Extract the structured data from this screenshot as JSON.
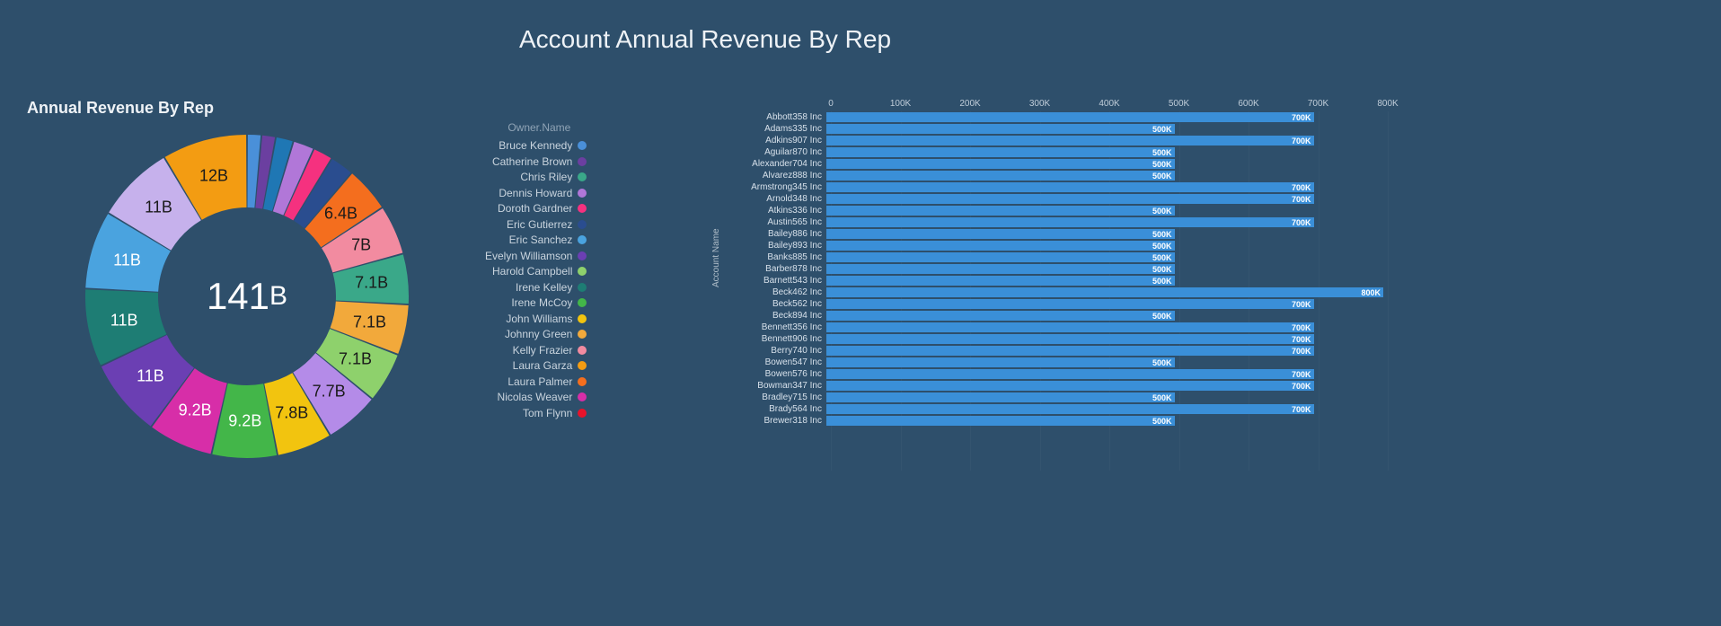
{
  "title": "Account Annual Revenue By Rep",
  "subtitle": "Annual Revenue By Rep",
  "colors": {
    "background": "#2e4f6b",
    "text": "#ffffff",
    "muted_text": "#c0cdd9",
    "bar_fill": "#3a8fd8"
  },
  "donut": {
    "center_value": "141",
    "center_unit": "B",
    "inner_radius_pct": 55,
    "slices": [
      {
        "label_visible": "",
        "value": 2.0,
        "color": "#4a90d9",
        "text_color": "#ffffff"
      },
      {
        "label_visible": "",
        "value": 2.0,
        "color": "#6b3fa0",
        "text_color": "#ffffff"
      },
      {
        "label_visible": "",
        "value": 2.5,
        "color": "#1f77b4",
        "text_color": "#ffffff"
      },
      {
        "label_visible": "",
        "value": 3.0,
        "color": "#b177d8",
        "text_color": "#ffffff"
      },
      {
        "label_visible": "",
        "value": 2.8,
        "color": "#f5317f",
        "text_color": "#ffffff"
      },
      {
        "label_visible": "",
        "value": 3.4,
        "color": "#2a4d8f",
        "text_color": "#ffffff"
      },
      {
        "label_visible": "6.4B",
        "value": 6.4,
        "color": "#f46e1e",
        "text_color": "#1a1a1a"
      },
      {
        "label_visible": "7B",
        "value": 7.0,
        "color": "#f28ba0",
        "text_color": "#1a1a1a"
      },
      {
        "label_visible": "7.1B",
        "value": 7.1,
        "color": "#3aa889",
        "text_color": "#1a1a1a"
      },
      {
        "label_visible": "7.1B",
        "value": 7.1,
        "color": "#f2a93b",
        "text_color": "#1a1a1a"
      },
      {
        "label_visible": "7.1B",
        "value": 7.1,
        "color": "#8ed16c",
        "text_color": "#1a1a1a"
      },
      {
        "label_visible": "7.7B",
        "value": 7.7,
        "color": "#b48be8",
        "text_color": "#1a1a1a"
      },
      {
        "label_visible": "7.8B",
        "value": 7.8,
        "color": "#f2c40f",
        "text_color": "#1a1a1a"
      },
      {
        "label_visible": "9.2B",
        "value": 9.2,
        "color": "#43b649",
        "text_color": "#ffffff"
      },
      {
        "label_visible": "9.2B",
        "value": 9.2,
        "color": "#d72ea8",
        "text_color": "#ffffff"
      },
      {
        "label_visible": "11B",
        "value": 11.0,
        "color": "#6b3fb3",
        "text_color": "#ffffff"
      },
      {
        "label_visible": "11B",
        "value": 11.0,
        "color": "#1e7d74",
        "text_color": "#ffffff"
      },
      {
        "label_visible": "11B",
        "value": 11.0,
        "color": "#4aa3df",
        "text_color": "#ffffff"
      },
      {
        "label_visible": "11B",
        "value": 11.0,
        "color": "#c6b1ec",
        "text_color": "#1a1a1a"
      },
      {
        "label_visible": "12B",
        "value": 12.0,
        "color": "#f39c12",
        "text_color": "#1a1a1a"
      }
    ]
  },
  "legend": {
    "title": "Owner.Name",
    "items": [
      {
        "name": "Bruce Kennedy",
        "color": "#4a90d9"
      },
      {
        "name": "Catherine Brown",
        "color": "#6b3fa0"
      },
      {
        "name": "Chris Riley",
        "color": "#3aa889"
      },
      {
        "name": "Dennis Howard",
        "color": "#b177d8"
      },
      {
        "name": "Doroth Gardner",
        "color": "#f5317f"
      },
      {
        "name": "Eric Gutierrez",
        "color": "#2a4d8f"
      },
      {
        "name": "Eric Sanchez",
        "color": "#4aa3df"
      },
      {
        "name": "Evelyn Williamson",
        "color": "#6b3fb3"
      },
      {
        "name": "Harold Campbell",
        "color": "#8ed16c"
      },
      {
        "name": "Irene Kelley",
        "color": "#1e7d74"
      },
      {
        "name": "Irene McCoy",
        "color": "#43b649"
      },
      {
        "name": "John Williams",
        "color": "#f2c40f"
      },
      {
        "name": "Johnny Green",
        "color": "#f2a93b"
      },
      {
        "name": "Kelly Frazier",
        "color": "#f28ba0"
      },
      {
        "name": "Laura Garza",
        "color": "#f39c12"
      },
      {
        "name": "Laura Palmer",
        "color": "#f46e1e"
      },
      {
        "name": "Nicolas Weaver",
        "color": "#d72ea8"
      },
      {
        "name": "Tom Flynn",
        "color": "#e8132b"
      }
    ]
  },
  "barchart": {
    "y_axis_title": "Account Name",
    "x_axis": {
      "min": 0,
      "max": 800,
      "step": 100,
      "unit": "K"
    },
    "bar_color": "#3a8fd8",
    "bars": [
      {
        "label": "Abbott358 Inc",
        "value": 700,
        "display": "700K"
      },
      {
        "label": "Adams335 Inc",
        "value": 500,
        "display": "500K"
      },
      {
        "label": "Adkins907 Inc",
        "value": 700,
        "display": "700K"
      },
      {
        "label": "Aguilar870 Inc",
        "value": 500,
        "display": "500K"
      },
      {
        "label": "Alexander704 Inc",
        "value": 500,
        "display": "500K"
      },
      {
        "label": "Alvarez888 Inc",
        "value": 500,
        "display": "500K"
      },
      {
        "label": "Armstrong345 Inc",
        "value": 700,
        "display": "700K"
      },
      {
        "label": "Arnold348 Inc",
        "value": 700,
        "display": "700K"
      },
      {
        "label": "Atkins336 Inc",
        "value": 500,
        "display": "500K"
      },
      {
        "label": "Austin565 Inc",
        "value": 700,
        "display": "700K"
      },
      {
        "label": "Bailey886 Inc",
        "value": 500,
        "display": "500K"
      },
      {
        "label": "Bailey893 Inc",
        "value": 500,
        "display": "500K"
      },
      {
        "label": "Banks885 Inc",
        "value": 500,
        "display": "500K"
      },
      {
        "label": "Barber878 Inc",
        "value": 500,
        "display": "500K"
      },
      {
        "label": "Barnett543 Inc",
        "value": 500,
        "display": "500K"
      },
      {
        "label": "Beck462 Inc",
        "value": 800,
        "display": "800K"
      },
      {
        "label": "Beck562 Inc",
        "value": 700,
        "display": "700K"
      },
      {
        "label": "Beck894 Inc",
        "value": 500,
        "display": "500K"
      },
      {
        "label": "Bennett356 Inc",
        "value": 700,
        "display": "700K"
      },
      {
        "label": "Bennett906 Inc",
        "value": 700,
        "display": "700K"
      },
      {
        "label": "Berry740 Inc",
        "value": 700,
        "display": "700K"
      },
      {
        "label": "Bowen547 Inc",
        "value": 500,
        "display": "500K"
      },
      {
        "label": "Bowen576 Inc",
        "value": 700,
        "display": "700K"
      },
      {
        "label": "Bowman347 Inc",
        "value": 700,
        "display": "700K"
      },
      {
        "label": "Bradley715 Inc",
        "value": 500,
        "display": "500K"
      },
      {
        "label": "Brady564 Inc",
        "value": 700,
        "display": "700K"
      },
      {
        "label": "Brewer318 Inc",
        "value": 500,
        "display": "500K"
      }
    ]
  }
}
